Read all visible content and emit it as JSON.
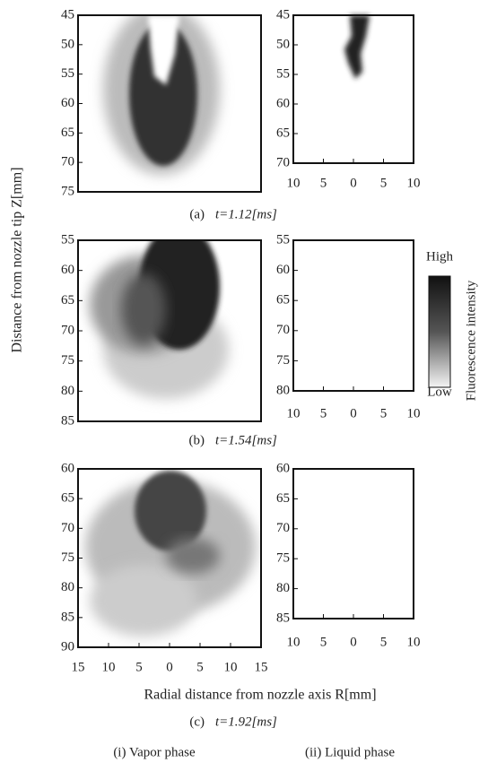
{
  "axis_labels": {
    "y": "Distance from nozzle tip Z[mm]",
    "x": "Radial distance from nozzle axis R[mm]"
  },
  "panels": [
    {
      "label": "(a)",
      "time": "t=1.12[ms]",
      "vapor": {
        "yticks": [
          45,
          50,
          55,
          60,
          65,
          70,
          75
        ]
      },
      "liquid": {
        "yticks": [
          45,
          50,
          55,
          60,
          65,
          70
        ],
        "xticks": [
          10,
          5,
          0,
          5,
          10
        ]
      }
    },
    {
      "label": "(b)",
      "time": "t=1.54[ms]",
      "vapor": {
        "yticks": [
          55,
          60,
          65,
          70,
          75,
          80,
          85
        ]
      },
      "liquid": {
        "yticks": [
          55,
          60,
          65,
          70,
          75,
          80
        ],
        "xticks": [
          10,
          5,
          0,
          5,
          10
        ]
      }
    },
    {
      "label": "(c)",
      "time": "t=1.92[ms]",
      "vapor": {
        "yticks": [
          60,
          65,
          70,
          75,
          80,
          85,
          90
        ],
        "xticks": [
          15,
          10,
          5,
          0,
          5,
          10,
          15
        ]
      },
      "liquid": {
        "yticks": [
          60,
          65,
          70,
          75,
          80,
          85
        ],
        "xticks": [
          10,
          5,
          0,
          5,
          10
        ]
      }
    }
  ],
  "colorbar": {
    "high": "High",
    "low": "Low",
    "label": "Fluorescence intensity"
  },
  "phases": [
    "(i)  Vapor phase",
    "(ii)  Liquid phase"
  ]
}
